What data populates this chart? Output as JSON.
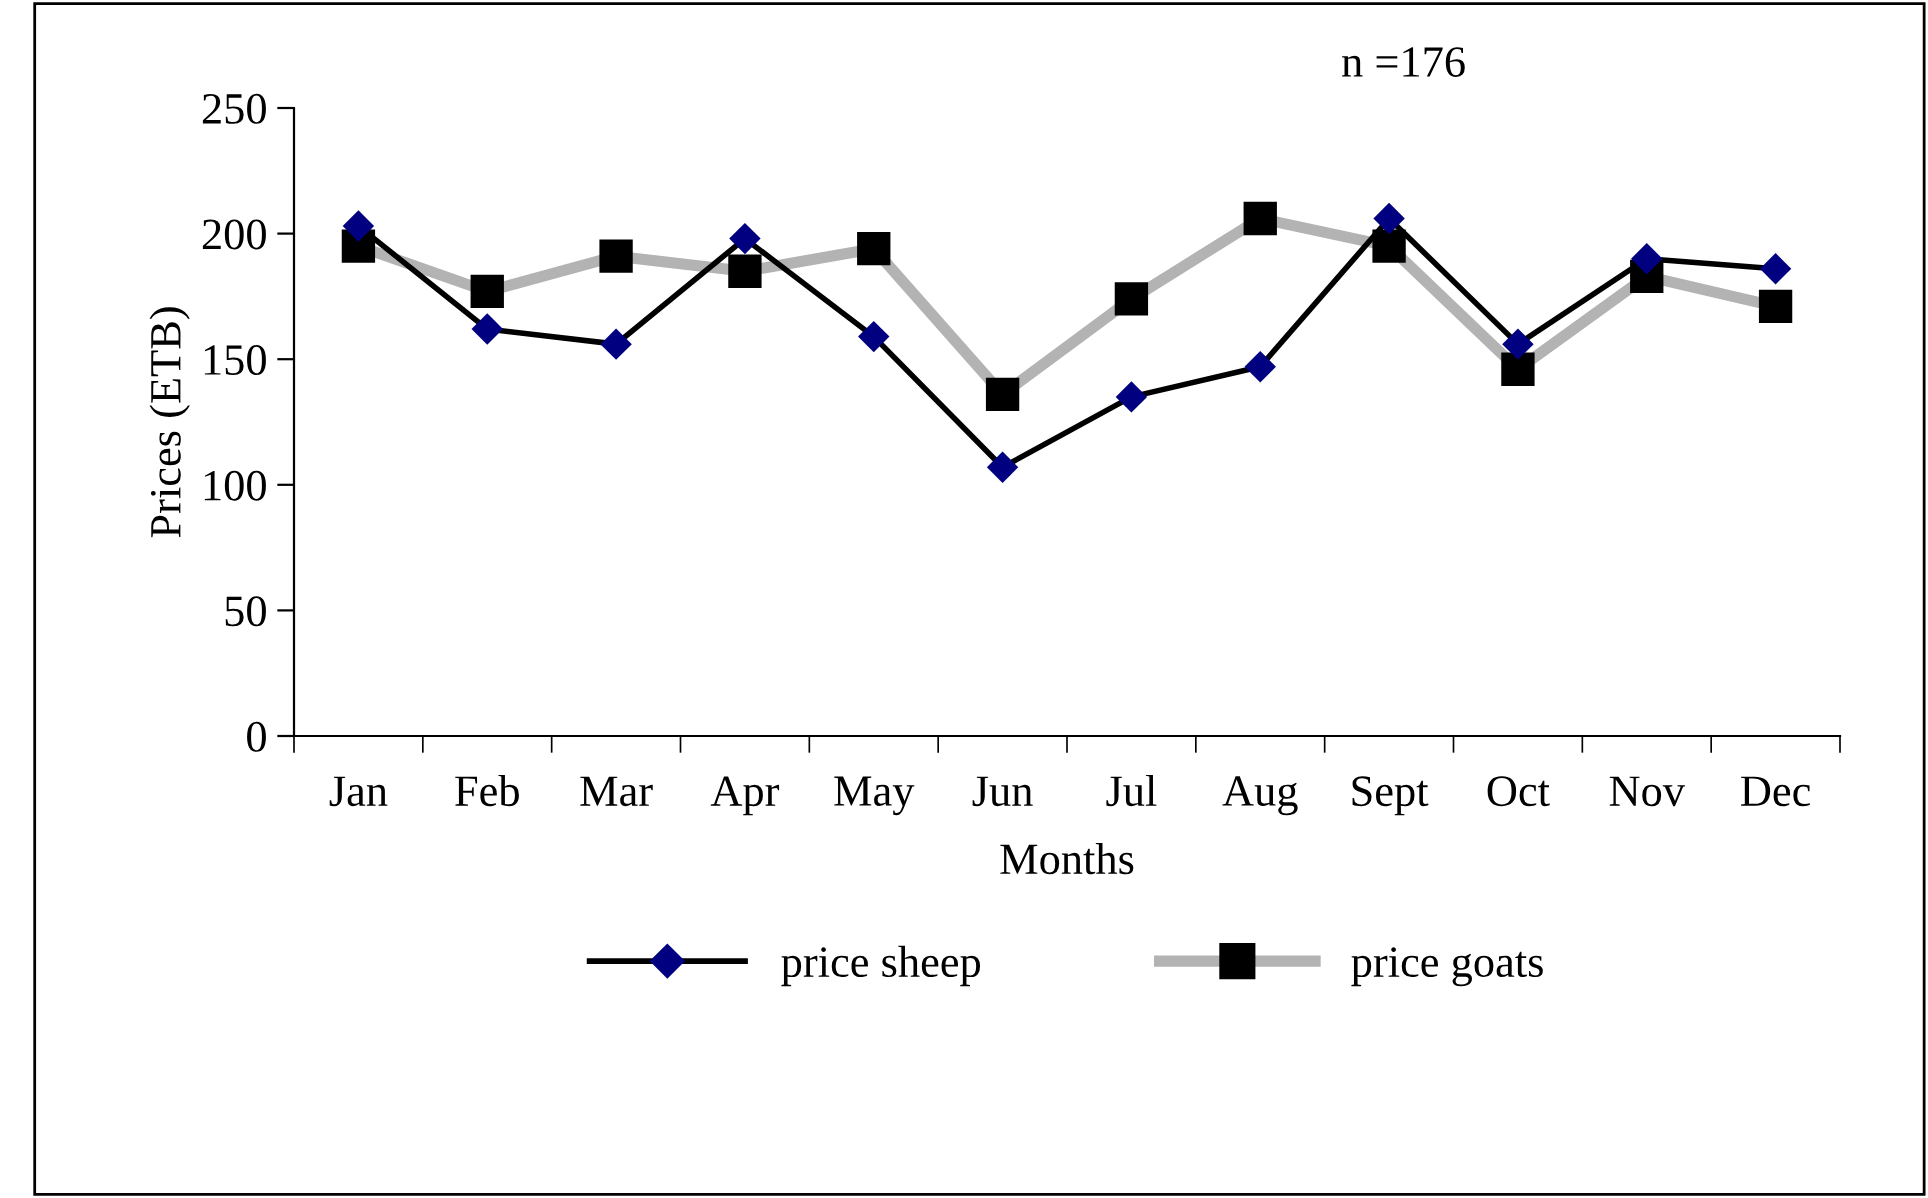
{
  "chart_data": {
    "type": "line",
    "xlabel": "Months",
    "ylabel": "Prices (ETB)",
    "categories": [
      "Jan",
      "Feb",
      "Mar",
      "Apr",
      "May",
      "Jun",
      "Jul",
      "Aug",
      "Sept",
      "Oct",
      "Nov",
      "Dec"
    ],
    "series": [
      {
        "name": "price sheep",
        "color": "#000000",
        "colors": [
          "#000080",
          "#000080",
          "#000080",
          "#000080",
          "#000080",
          "#000080",
          "#000080",
          "#000080",
          "#000080",
          "#000080",
          "#000080",
          "#000080"
        ],
        "marker": "diamond",
        "values": [
          203,
          162,
          156,
          198,
          159,
          107,
          135,
          147,
          206,
          156,
          190,
          186
        ]
      },
      {
        "name": "price goats",
        "color": "#b3b3b3",
        "colors": [
          "#000000",
          "#000000",
          "#000000",
          "#000000",
          "#000000",
          "#000000",
          "#000000",
          "#000000",
          "#000000",
          "#000000",
          "#000000",
          "#000000"
        ],
        "marker": "square",
        "values": [
          195,
          177,
          191,
          185,
          194,
          136,
          174,
          206,
          195,
          146,
          183,
          171
        ]
      }
    ],
    "ylim": [
      0,
      250
    ],
    "yticks": [
      0,
      50,
      100,
      150,
      200,
      250
    ],
    "annotations": [
      "n =176"
    ],
    "grid": false,
    "legend": "bottom",
    "line_style": "solid"
  }
}
